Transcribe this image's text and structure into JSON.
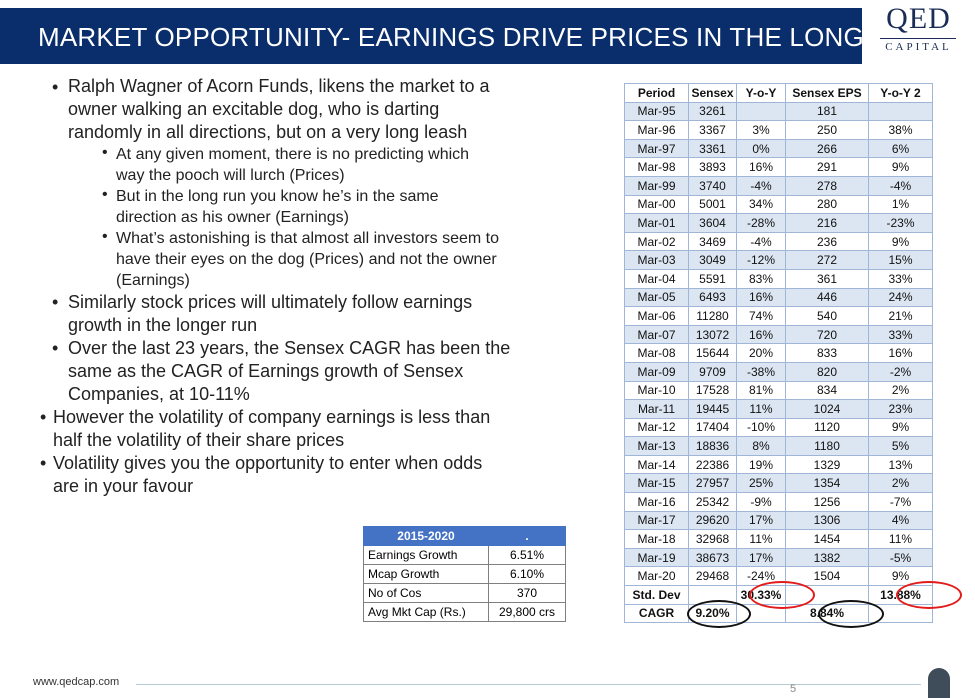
{
  "header": {
    "title": "MARKET OPPORTUNITY- EARNINGS DRIVE PRICES IN THE LONG RUN",
    "logo_main": "QED",
    "logo_sub": "CAPITAL"
  },
  "bullets": [
    {
      "lines": [
        "Ralph Wagner of Acorn Funds, likens the market to a",
        "owner walking an excitable dog, who is darting",
        "randomly in all directions, but on a very long leash"
      ]
    },
    {
      "lines": [
        "At any given moment, there is no predicting which",
        "way the pooch will lurch (Prices)"
      ]
    },
    {
      "lines": [
        "But in the long run you know he’s in the same",
        "direction as his owner (Earnings)"
      ]
    },
    {
      "lines": [
        "What’s astonishing is that almost all investors seem to",
        "have their eyes on the dog (Prices) and not the owner",
        "(Earnings)"
      ]
    },
    {
      "lines": [
        "Similarly stock prices will ultimately follow earnings",
        "growth in the longer run"
      ]
    },
    {
      "lines": [
        "Over the last 23 years, the Sensex CAGR has been the",
        "same as the CAGR of Earnings growth of Sensex",
        "Companies, at 10-11%"
      ]
    },
    {
      "lines": [
        "However the volatility of company earnings is less than",
        "half the volatility of their share prices"
      ]
    },
    {
      "lines": [
        "Volatility gives you the opportunity to enter when odds",
        "are in your favour"
      ]
    }
  ],
  "summary_table": {
    "header": [
      "2015-2020",
      "."
    ],
    "rows": [
      [
        "Earnings Growth",
        "6.51%"
      ],
      [
        "Mcap Growth",
        "6.10%"
      ],
      [
        "No of Cos",
        "370"
      ],
      [
        "Avg Mkt Cap (Rs.)",
        "29,800 crs"
      ]
    ]
  },
  "sensex_table": {
    "columns": [
      "Period",
      "Sensex",
      "Y-o-Y",
      "Sensex EPS",
      "Y-o-Y 2"
    ],
    "rows": [
      [
        "Mar-95",
        "3261",
        "",
        "181",
        ""
      ],
      [
        "Mar-96",
        "3367",
        "3%",
        "250",
        "38%"
      ],
      [
        "Mar-97",
        "3361",
        "0%",
        "266",
        "6%"
      ],
      [
        "Mar-98",
        "3893",
        "16%",
        "291",
        "9%"
      ],
      [
        "Mar-99",
        "3740",
        "-4%",
        "278",
        "-4%"
      ],
      [
        "Mar-00",
        "5001",
        "34%",
        "280",
        "1%"
      ],
      [
        "Mar-01",
        "3604",
        "-28%",
        "216",
        "-23%"
      ],
      [
        "Mar-02",
        "3469",
        "-4%",
        "236",
        "9%"
      ],
      [
        "Mar-03",
        "3049",
        "-12%",
        "272",
        "15%"
      ],
      [
        "Mar-04",
        "5591",
        "83%",
        "361",
        "33%"
      ],
      [
        "Mar-05",
        "6493",
        "16%",
        "446",
        "24%"
      ],
      [
        "Mar-06",
        "11280",
        "74%",
        "540",
        "21%"
      ],
      [
        "Mar-07",
        "13072",
        "16%",
        "720",
        "33%"
      ],
      [
        "Mar-08",
        "15644",
        "20%",
        "833",
        "16%"
      ],
      [
        "Mar-09",
        "9709",
        "-38%",
        "820",
        "-2%"
      ],
      [
        "Mar-10",
        "17528",
        "81%",
        "834",
        "2%"
      ],
      [
        "Mar-11",
        "19445",
        "11%",
        "1024",
        "23%"
      ],
      [
        "Mar-12",
        "17404",
        "-10%",
        "1120",
        "9%"
      ],
      [
        "Mar-13",
        "18836",
        "8%",
        "1180",
        "5%"
      ],
      [
        "Mar-14",
        "22386",
        "19%",
        "1329",
        "13%"
      ],
      [
        "Mar-15",
        "27957",
        "25%",
        "1354",
        "2%"
      ],
      [
        "Mar-16",
        "25342",
        "-9%",
        "1256",
        "-7%"
      ],
      [
        "Mar-17",
        "29620",
        "17%",
        "1306",
        "4%"
      ],
      [
        "Mar-18",
        "32968",
        "11%",
        "1454",
        "11%"
      ],
      [
        "Mar-19",
        "38673",
        "17%",
        "1382",
        "-5%"
      ],
      [
        "Mar-20",
        "29468",
        "-24%",
        "1504",
        "9%"
      ]
    ],
    "footer": [
      [
        "Std. Dev",
        "",
        "30.33%",
        "",
        "13.88%"
      ],
      [
        "CAGR",
        "9.20%",
        "",
        "8.84%",
        ""
      ]
    ]
  },
  "highlight_colors": {
    "red": "#e21b1b",
    "black": "#111111"
  },
  "footer": {
    "url": "www.qedcap.com",
    "page": "5"
  }
}
